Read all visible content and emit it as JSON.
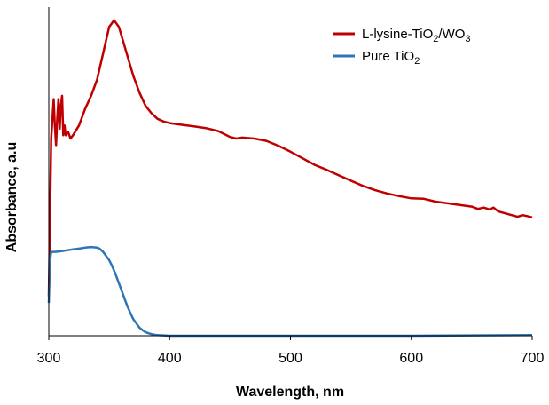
{
  "chart_data": {
    "type": "line",
    "xlabel": "Wavelength, nm",
    "ylabel": "Absorbance, a.u",
    "xlim": [
      300,
      700
    ],
    "ylim": [
      0,
      1
    ],
    "xticks": [
      "300",
      "400",
      "500",
      "600",
      "700"
    ],
    "y_tick_labels_shown": false,
    "grid": false,
    "legend_position": "top-right",
    "series": [
      {
        "name": "L-lysine-TiO2/WO3",
        "name_parts": [
          "L-lysine-TiO",
          "2",
          "/WO",
          "3"
        ],
        "color": "#c00000",
        "x": [
          300,
          302,
          304,
          305,
          306,
          307,
          308,
          309,
          310,
          311,
          312,
          313,
          314,
          316,
          318,
          320,
          325,
          330,
          335,
          340,
          345,
          350,
          354,
          358,
          362,
          366,
          370,
          375,
          380,
          385,
          390,
          395,
          400,
          410,
          420,
          430,
          440,
          450,
          455,
          460,
          470,
          480,
          490,
          500,
          510,
          520,
          530,
          540,
          550,
          560,
          570,
          580,
          590,
          600,
          610,
          620,
          630,
          640,
          650,
          655,
          660,
          665,
          668,
          672,
          680,
          688,
          692,
          696,
          700
        ],
        "y": [
          0.12,
          0.6,
          0.72,
          0.64,
          0.58,
          0.66,
          0.72,
          0.63,
          0.7,
          0.73,
          0.61,
          0.64,
          0.61,
          0.62,
          0.6,
          0.61,
          0.64,
          0.69,
          0.73,
          0.78,
          0.86,
          0.94,
          0.96,
          0.94,
          0.89,
          0.84,
          0.79,
          0.74,
          0.7,
          0.677,
          0.66,
          0.652,
          0.647,
          0.642,
          0.637,
          0.632,
          0.623,
          0.605,
          0.6,
          0.603,
          0.6,
          0.593,
          0.578,
          0.56,
          0.54,
          0.52,
          0.505,
          0.488,
          0.472,
          0.456,
          0.443,
          0.433,
          0.425,
          0.418,
          0.417,
          0.408,
          0.403,
          0.398,
          0.393,
          0.386,
          0.39,
          0.384,
          0.39,
          0.378,
          0.37,
          0.362,
          0.367,
          0.364,
          0.36
        ]
      },
      {
        "name": "Pure TiO2",
        "name_parts": [
          "Pure TiO",
          "2"
        ],
        "color": "#2e75b6",
        "x": [
          300,
          301,
          302,
          305,
          310,
          315,
          320,
          325,
          330,
          335,
          340,
          342,
          345,
          348,
          350,
          352,
          355,
          358,
          360,
          363,
          365,
          368,
          370,
          373,
          375,
          378,
          380,
          383,
          386,
          390,
          395,
          400,
          410,
          420,
          440,
          500,
          600,
          700
        ],
        "y": [
          0.1,
          0.23,
          0.255,
          0.255,
          0.257,
          0.26,
          0.263,
          0.265,
          0.268,
          0.27,
          0.268,
          0.265,
          0.255,
          0.24,
          0.23,
          0.215,
          0.19,
          0.16,
          0.14,
          0.11,
          0.09,
          0.065,
          0.05,
          0.035,
          0.025,
          0.016,
          0.011,
          0.007,
          0.004,
          0.002,
          0.001,
          0.0,
          0.0,
          0.0,
          0.0,
          0.0,
          0.0,
          0.002
        ]
      }
    ]
  }
}
